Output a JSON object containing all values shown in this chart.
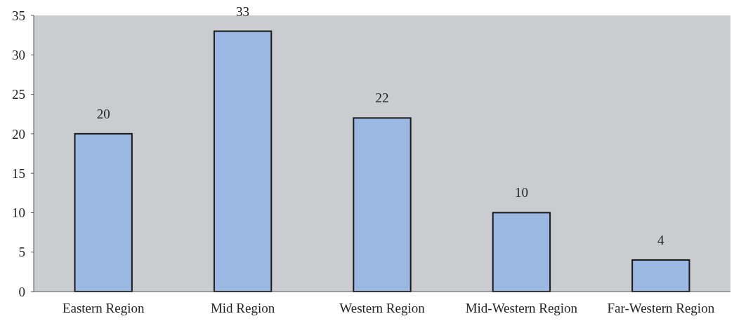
{
  "chart_data": {
    "type": "bar",
    "categories": [
      "Eastern Region",
      "Mid Region",
      "Western Region",
      "Mid-Western Region",
      "Far-Western Region"
    ],
    "values": [
      20,
      33,
      22,
      10,
      4
    ],
    "color": "#9ab8e2",
    "ylim": [
      0,
      35
    ],
    "yticks": [
      0,
      5,
      10,
      15,
      20,
      25,
      30,
      35
    ],
    "data_labels": true
  }
}
